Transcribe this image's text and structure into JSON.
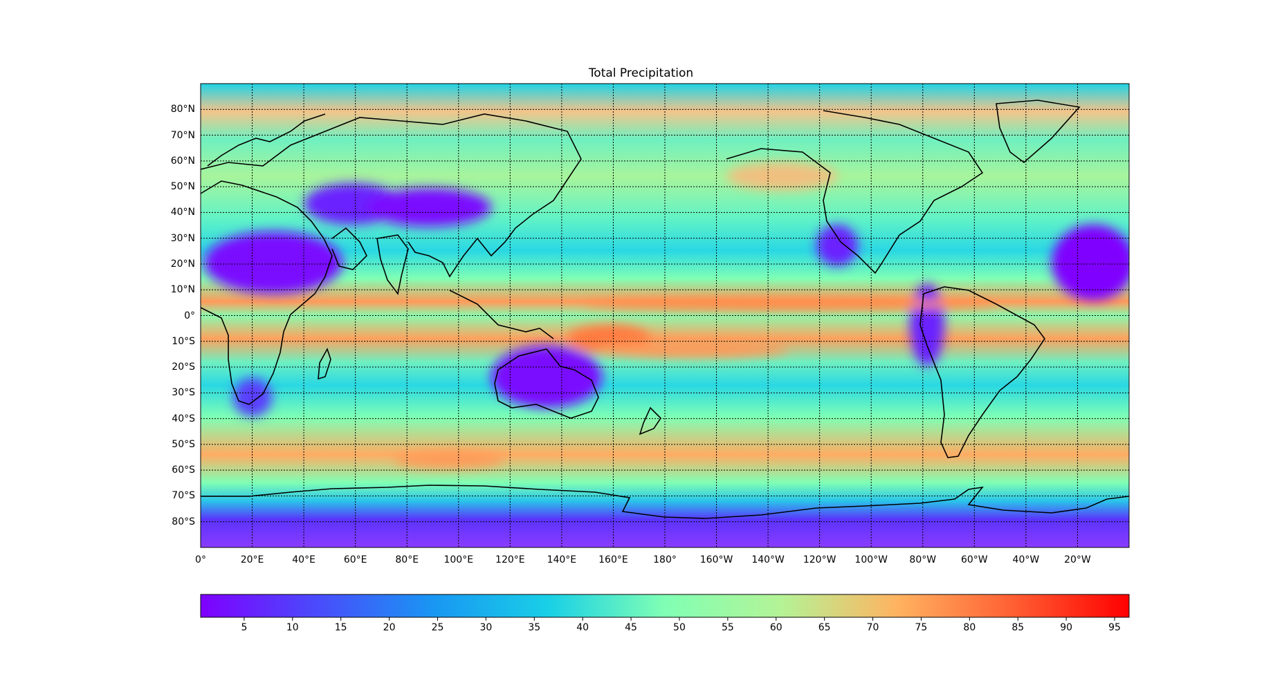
{
  "map": {
    "title": "Total Precipitation",
    "projection": "equirectangular, central longitude 180",
    "lat_labels": [
      "80°N",
      "70°N",
      "60°N",
      "50°N",
      "40°N",
      "30°N",
      "20°N",
      "10°N",
      "0°",
      "10°S",
      "20°S",
      "30°S",
      "40°S",
      "50°S",
      "60°S",
      "70°S",
      "80°S"
    ],
    "lon_labels": [
      "0°",
      "20°E",
      "40°E",
      "60°E",
      "80°E",
      "100°E",
      "120°E",
      "140°E",
      "160°E",
      "180°",
      "160°W",
      "140°W",
      "120°W",
      "100°W",
      "80°W",
      "60°W",
      "40°W",
      "20°W"
    ],
    "gridlines": "dotted",
    "colormap": "rainbow",
    "colors": {
      "low": "#7f00ff",
      "mid": "#80ffb4",
      "high": "#ff0000",
      "coast": "#000000"
    }
  },
  "colorbar": {
    "orientation": "horizontal",
    "range": [
      0.5,
      96.5
    ],
    "ticks": [
      "5",
      "10",
      "15",
      "20",
      "25",
      "30",
      "35",
      "40",
      "45",
      "50",
      "55",
      "60",
      "65",
      "70",
      "75",
      "80",
      "85",
      "90",
      "95"
    ]
  }
}
